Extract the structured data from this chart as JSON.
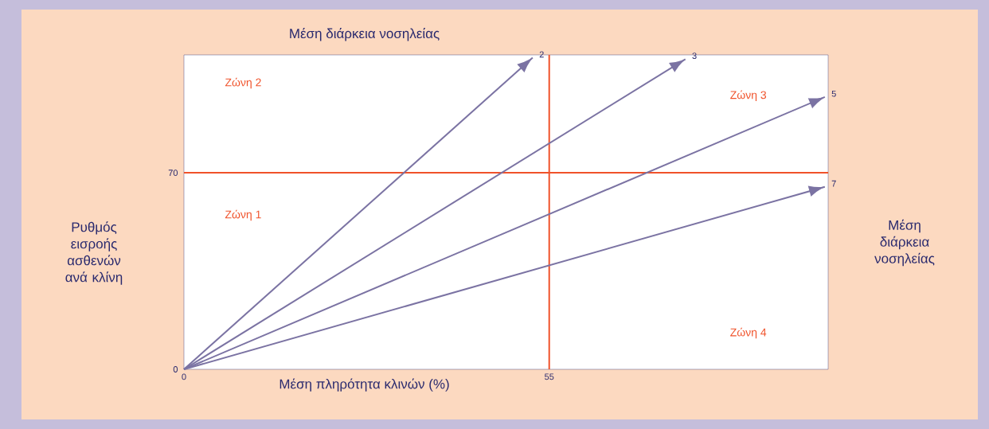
{
  "chart_data": {
    "type": "line",
    "title": "Μέση διάρκεια νοσηλείας",
    "xlabel": "Μέση πληρότητα κλινών (%)",
    "ylabel": "Ρυθμός εισροής ασθενών ανά κλίνη",
    "y2label": "Μέση διάρκεια νοσηλείας",
    "xlim": [
      0,
      97
    ],
    "ylim": [
      0,
      112
    ],
    "xticks": [
      0,
      55
    ],
    "yticks": [
      0,
      70
    ],
    "series": [
      {
        "name": "2",
        "color": "#7b73a3",
        "x": [
          0,
          52.5
        ],
        "values": [
          0,
          111
        ]
      },
      {
        "name": "3",
        "color": "#7b73a3",
        "x": [
          0,
          75.5
        ],
        "values": [
          0,
          110.5
        ]
      },
      {
        "name": "5",
        "color": "#7b73a3",
        "x": [
          0,
          96.5
        ],
        "values": [
          0,
          97
        ]
      },
      {
        "name": "7",
        "color": "#7b73a3",
        "x": [
          0,
          96.5
        ],
        "values": [
          0,
          65
        ]
      }
    ],
    "ref_lines": [
      {
        "axis": "x",
        "value": 55,
        "color": "#f0522a"
      },
      {
        "axis": "y",
        "value": 70,
        "color": "#f0522a"
      }
    ],
    "annotations": [
      "Ζώνη 2",
      "Ζώνη 1",
      "Ζώνη 3",
      "Ζώνη 4"
    ],
    "grid": false,
    "marker": "none",
    "line_style": "solid"
  }
}
